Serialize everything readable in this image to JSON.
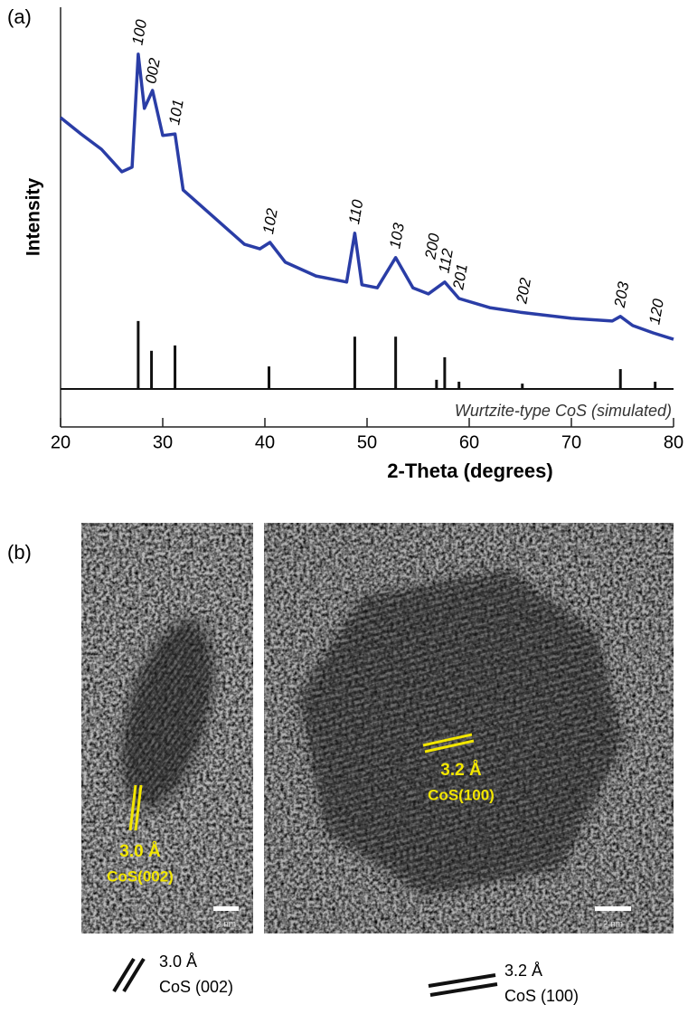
{
  "chart_data": {
    "type": "line",
    "panel_label": "(a)",
    "xlabel": "2-Theta (degrees)",
    "ylabel": "Intensity",
    "xlim": [
      20,
      80
    ],
    "xticks": [
      20,
      30,
      40,
      50,
      60,
      70,
      80
    ],
    "ylim": [
      0,
      100
    ],
    "series": [
      {
        "color": "#2a3da6",
        "x": [
          20,
          22,
          24,
          26,
          27,
          27.6,
          28.2,
          29,
          30,
          31.2,
          32,
          35,
          38,
          39.5,
          40.5,
          42,
          45,
          48,
          48.8,
          49.5,
          51,
          52.8,
          54.5,
          56,
          57.6,
          59,
          62,
          65,
          70,
          74,
          74.8,
          76,
          78,
          80
        ],
        "values": [
          71.1,
          66.8,
          62.8,
          56.9,
          58.1,
          87.7,
          73.5,
          78.2,
          66.4,
          66.8,
          52.1,
          45.0,
          37.9,
          36.7,
          38.4,
          33.2,
          29.6,
          28.0,
          40.8,
          27.3,
          26.5,
          34.4,
          26.5,
          24.9,
          28.0,
          23.7,
          21.3,
          20.1,
          18.5,
          17.8,
          19.0,
          16.6,
          14.7,
          13.0
        ]
      },
      {
        "name": "Wurtzite-type CoS (simulated)",
        "color": "#111111",
        "labels": [
          "100",
          "002",
          "101",
          "102",
          "110",
          "103",
          "200",
          "112",
          "201",
          "202",
          "203",
          "120"
        ],
        "x": [
          27.6,
          28.9,
          31.2,
          40.4,
          48.8,
          52.8,
          56.8,
          57.6,
          59.0,
          65.2,
          74.8,
          78.2
        ],
        "values": [
          17.8,
          10.0,
          11.4,
          5.9,
          13.7,
          13.7,
          2.4,
          8.3,
          1.9,
          1.4,
          5.2,
          1.9
        ]
      }
    ]
  },
  "panel_b": {
    "panel_label": "(b)",
    "left_image": {
      "spacing": "3.0 Å",
      "plane": "CoS(002)",
      "scale_bar": "2 nm"
    },
    "right_image": {
      "spacing": "3.2 Å",
      "plane": "CoS(100)",
      "scale_bar": "2 nm"
    },
    "legend": [
      {
        "spacing": "3.0 Å",
        "plane": "CoS (002)"
      },
      {
        "spacing": "3.2 Å",
        "plane": "CoS (100)"
      }
    ]
  }
}
